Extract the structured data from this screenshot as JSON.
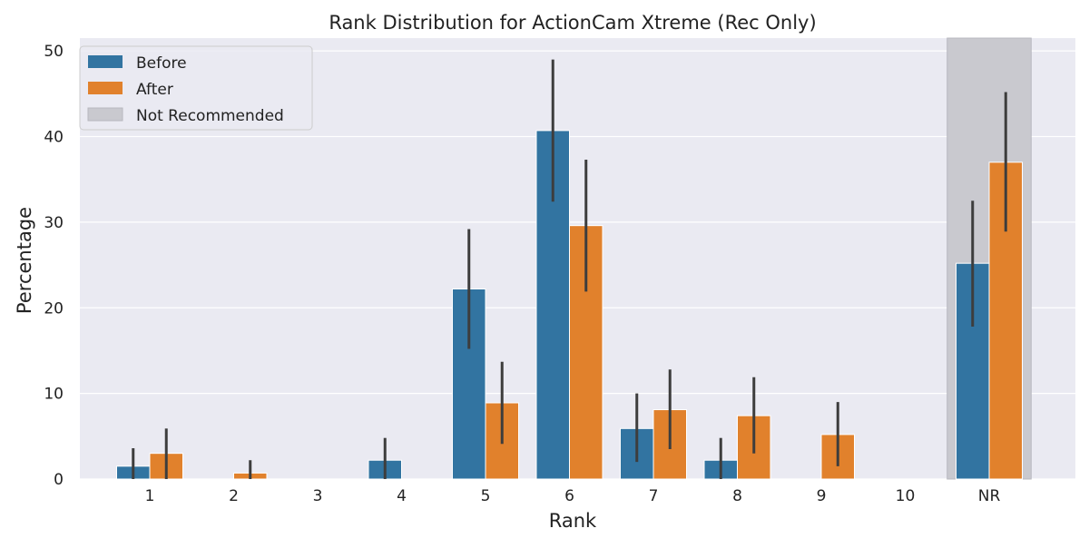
{
  "chart_data": {
    "type": "bar",
    "title": "Rank Distribution for ActionCam Xtreme (Rec Only)",
    "xlabel": "Rank",
    "ylabel": "Percentage",
    "categories": [
      "1",
      "2",
      "3",
      "4",
      "5",
      "6",
      "7",
      "8",
      "9",
      "10",
      "NR"
    ],
    "ylim": [
      0,
      51.5
    ],
    "yticks": [
      0,
      10,
      20,
      30,
      40,
      50
    ],
    "grid": true,
    "legend_position": "top-left",
    "series": [
      {
        "name": "Before",
        "color": "#3274a1",
        "values": [
          1.5,
          0,
          0,
          2.2,
          22.2,
          40.7,
          5.9,
          2.2,
          0,
          0,
          25.2
        ],
        "error_low": [
          0,
          0,
          0,
          0,
          15.2,
          32.4,
          2.0,
          0,
          0,
          0,
          17.8
        ],
        "error_high": [
          3.6,
          0,
          0,
          4.8,
          29.2,
          49.0,
          10.0,
          4.8,
          0,
          0,
          32.5
        ]
      },
      {
        "name": "After",
        "color": "#e1812c",
        "values": [
          3.0,
          0.7,
          0,
          0,
          8.9,
          29.6,
          8.1,
          7.4,
          5.2,
          0,
          37.0
        ],
        "error_low": [
          0,
          0,
          0,
          0,
          4.1,
          21.9,
          3.5,
          3.0,
          1.5,
          0,
          28.9
        ],
        "error_high": [
          5.9,
          2.2,
          0,
          0,
          13.7,
          37.3,
          12.8,
          11.9,
          9.0,
          0,
          45.2
        ]
      }
    ],
    "highlight": {
      "label": "Not Recommended",
      "category": "NR",
      "color": "#c9c9cf"
    },
    "colors": {
      "background": "#eaeaf2",
      "grid": "#ffffff",
      "error_bar": "#3d3d3d"
    }
  }
}
